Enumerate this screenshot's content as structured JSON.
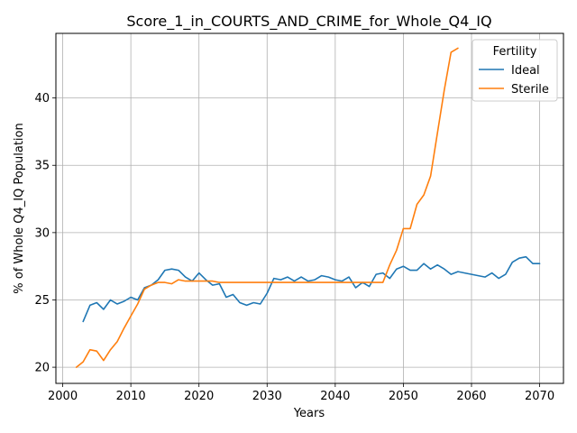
{
  "chart_data": {
    "type": "line",
    "title": "Score_1_in_COURTS_AND_CRIME_for_Whole_Q4_IQ",
    "xlabel": "Years",
    "ylabel": "% of Whole Q4_IQ Population",
    "xlim": [
      1999,
      2073.5
    ],
    "ylim": [
      18.8,
      44.8
    ],
    "xticks": [
      2000,
      2010,
      2020,
      2030,
      2040,
      2050,
      2060,
      2070
    ],
    "yticks": [
      20,
      25,
      30,
      35,
      40
    ],
    "grid": true,
    "legend": {
      "title": "Fertility",
      "placement": "top-right"
    },
    "series": [
      {
        "name": "Ideal",
        "color": "#1f77b4",
        "x": [
          2003,
          2004,
          2005,
          2006,
          2007,
          2008,
          2009,
          2010,
          2011,
          2012,
          2013,
          2014,
          2015,
          2016,
          2017,
          2018,
          2019,
          2020,
          2021,
          2022,
          2023,
          2024,
          2025,
          2026,
          2027,
          2028,
          2029,
          2030,
          2031,
          2032,
          2033,
          2034,
          2035,
          2036,
          2037,
          2038,
          2039,
          2040,
          2041,
          2042,
          2043,
          2044,
          2045,
          2046,
          2047,
          2048,
          2049,
          2050,
          2051,
          2052,
          2053,
          2054,
          2055,
          2056,
          2057,
          2058,
          2059,
          2060,
          2061,
          2062,
          2063,
          2064,
          2065,
          2066,
          2067,
          2068,
          2069,
          2070
        ],
        "y": [
          23.4,
          24.6,
          24.8,
          24.3,
          25.0,
          24.7,
          24.9,
          25.2,
          25.0,
          25.9,
          26.1,
          26.5,
          27.2,
          27.3,
          27.2,
          26.7,
          26.4,
          27.0,
          26.5,
          26.1,
          26.2,
          25.2,
          25.4,
          24.8,
          24.6,
          24.8,
          24.7,
          25.5,
          26.6,
          26.5,
          26.7,
          26.4,
          26.7,
          26.4,
          26.5,
          26.8,
          26.7,
          26.5,
          26.4,
          26.7,
          25.9,
          26.3,
          26.0,
          26.9,
          27.0,
          26.6,
          27.3,
          27.5,
          27.2,
          27.2,
          27.7,
          27.3,
          27.6,
          27.3,
          26.9,
          27.1,
          27.0,
          26.9,
          26.8,
          26.7,
          27.0,
          26.6,
          26.9,
          27.8,
          28.1,
          28.2,
          27.7,
          27.7
        ]
      },
      {
        "name": "Sterile",
        "color": "#ff7f0e",
        "x": [
          2002,
          2003,
          2004,
          2005,
          2006,
          2007,
          2008,
          2009,
          2010,
          2011,
          2012,
          2013,
          2014,
          2015,
          2016,
          2017,
          2018,
          2019,
          2020,
          2021,
          2022,
          2023,
          2024,
          2025,
          2026,
          2027,
          2028,
          2029,
          2030,
          2031,
          2032,
          2033,
          2034,
          2035,
          2036,
          2037,
          2038,
          2039,
          2040,
          2041,
          2042,
          2043,
          2044,
          2045,
          2046,
          2047,
          2048,
          2049,
          2050,
          2051,
          2052,
          2053,
          2054,
          2055,
          2056,
          2057,
          2058
        ],
        "y": [
          20.0,
          20.4,
          21.3,
          21.2,
          20.5,
          21.3,
          21.9,
          22.9,
          23.8,
          24.7,
          25.8,
          26.1,
          26.3,
          26.3,
          26.2,
          26.5,
          26.4,
          26.4,
          26.4,
          26.4,
          26.4,
          26.3,
          26.3,
          26.3,
          26.3,
          26.3,
          26.3,
          26.3,
          26.3,
          26.3,
          26.3,
          26.3,
          26.3,
          26.3,
          26.3,
          26.3,
          26.3,
          26.3,
          26.3,
          26.3,
          26.3,
          26.3,
          26.3,
          26.3,
          26.3,
          26.3,
          27.6,
          28.7,
          30.3,
          30.3,
          32.1,
          32.8,
          34.2,
          37.4,
          40.6,
          43.4,
          43.7
        ]
      }
    ]
  }
}
